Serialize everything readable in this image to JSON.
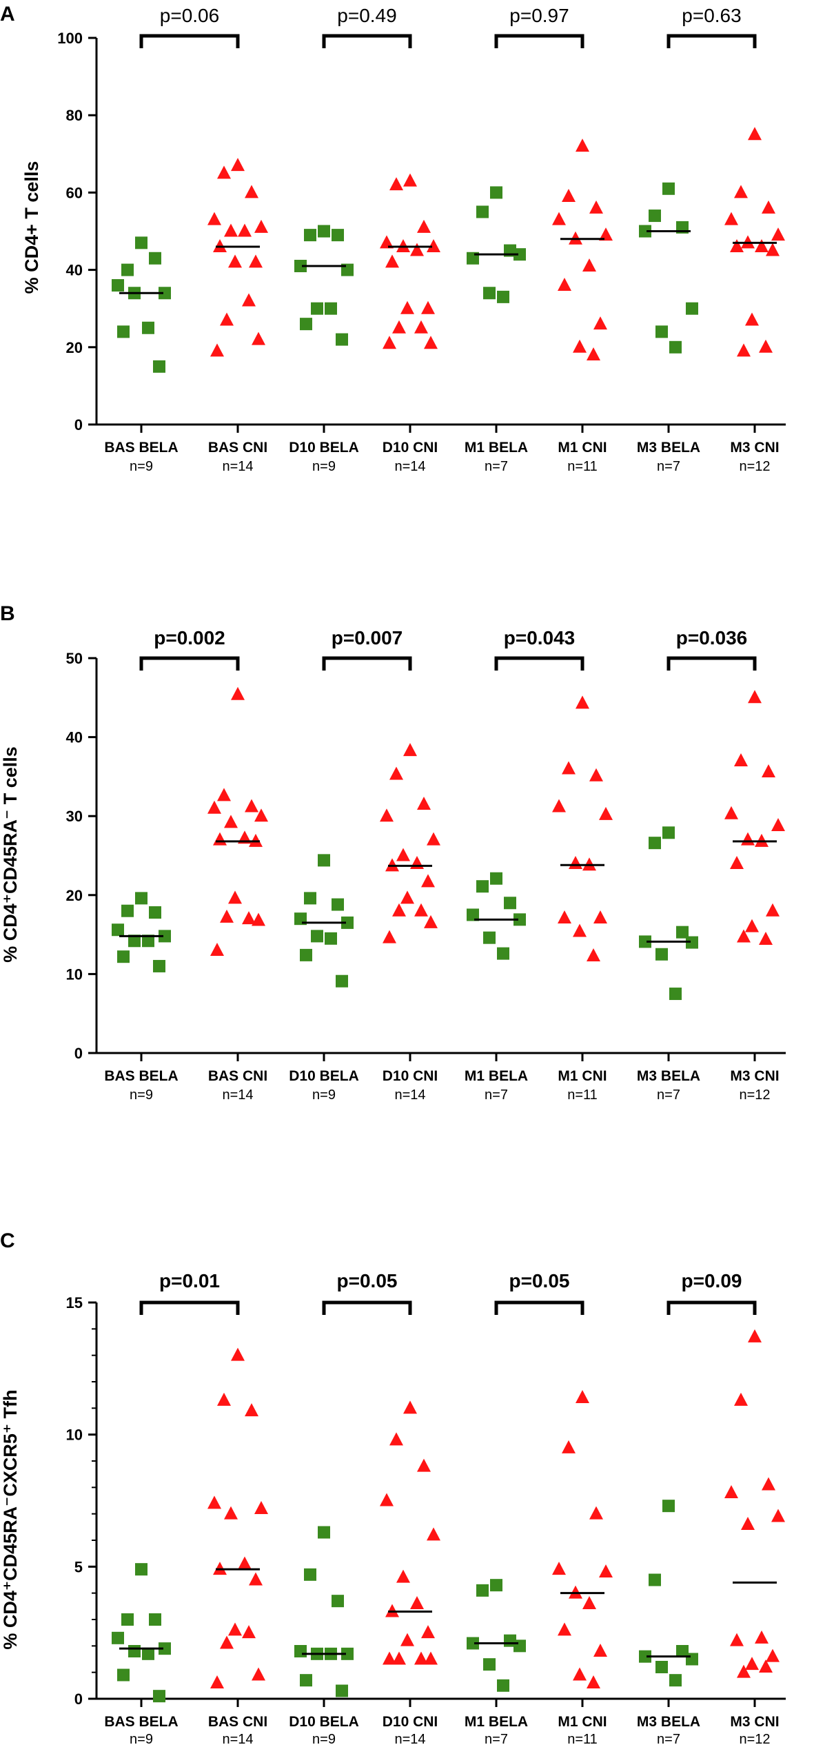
{
  "chart_data": [
    {
      "type": "scatter",
      "panel": "A",
      "ylabel": "% CD4+ T cells",
      "ylabel_html": "",
      "ylim": [
        0,
        100
      ],
      "yticks": [
        0,
        20,
        40,
        60,
        80,
        100
      ],
      "pvalue_bold": false,
      "categories": [
        {
          "label": "BAS BELA",
          "n": "n=9",
          "group": "BELA",
          "median": 34,
          "values": [
            47,
            40,
            43,
            36,
            34,
            34,
            25,
            24,
            15
          ]
        },
        {
          "label": "BAS CNI",
          "n": "n=14",
          "group": "CNI",
          "median": 46,
          "values": [
            67,
            65,
            60,
            53,
            51,
            50,
            50,
            46,
            42,
            42,
            32,
            27,
            22,
            19
          ]
        },
        {
          "label": "D10 BELA",
          "n": "n=9",
          "group": "BELA",
          "median": 41,
          "values": [
            50,
            49,
            49,
            41,
            40,
            30,
            30,
            26,
            22
          ]
        },
        {
          "label": "D10 CNI",
          "n": "n=14",
          "group": "CNI",
          "median": 46,
          "values": [
            63,
            62,
            51,
            47,
            46,
            46,
            45,
            42,
            30,
            30,
            25,
            25,
            21,
            21
          ]
        },
        {
          "label": "M1 BELA",
          "n": "n=7",
          "group": "BELA",
          "median": 44,
          "values": [
            60,
            55,
            45,
            43,
            44,
            34,
            33
          ]
        },
        {
          "label": "M1 CNI",
          "n": "n=11",
          "group": "CNI",
          "median": 48,
          "values": [
            72,
            59,
            56,
            53,
            49,
            48,
            41,
            36,
            26,
            20,
            18
          ]
        },
        {
          "label": "M3 BELA",
          "n": "n=7",
          "group": "BELA",
          "median": 50,
          "values": [
            61,
            54,
            51,
            50,
            30,
            24,
            20
          ]
        },
        {
          "label": "M3 CNI",
          "n": "n=12",
          "group": "CNI",
          "median": 47,
          "values": [
            75,
            60,
            56,
            53,
            49,
            47,
            46,
            46,
            45,
            27,
            20,
            19
          ]
        }
      ],
      "pvalues": [
        {
          "label": "p=0.06",
          "between": [
            0,
            1
          ]
        },
        {
          "label": "p=0.49",
          "between": [
            2,
            3
          ]
        },
        {
          "label": "p=0.97",
          "between": [
            4,
            5
          ]
        },
        {
          "label": "p=0.63",
          "between": [
            6,
            7
          ]
        }
      ]
    },
    {
      "type": "scatter",
      "panel": "B",
      "ylabel": "",
      "ylabel_html": "% CD4⁺CD45RA⁻ T cells",
      "ylim": [
        0,
        50
      ],
      "yticks": [
        0,
        10,
        20,
        30,
        40,
        50
      ],
      "pvalue_bold": true,
      "categories": [
        {
          "label": "BAS BELA",
          "n": "n=9",
          "group": "BELA",
          "median": 14.8,
          "values": [
            19.6,
            18.0,
            17.8,
            15.6,
            14.8,
            14.2,
            14.2,
            12.2,
            11.0
          ]
        },
        {
          "label": "BAS CNI",
          "n": "n=14",
          "group": "CNI",
          "median": 26.8,
          "values": [
            45.4,
            32.6,
            31.2,
            31.0,
            30.0,
            29.2,
            27.2,
            27.0,
            26.8,
            19.6,
            17.0,
            17.2,
            16.8,
            13.0
          ]
        },
        {
          "label": "D10 BELA",
          "n": "n=9",
          "group": "BELA",
          "median": 16.5,
          "values": [
            24.4,
            19.6,
            18.8,
            17.0,
            16.5,
            14.8,
            14.5,
            12.4,
            9.1
          ]
        },
        {
          "label": "D10 CNI",
          "n": "n=14",
          "group": "CNI",
          "median": 23.7,
          "values": [
            38.3,
            35.3,
            31.5,
            30.0,
            27.0,
            25.0,
            24.0,
            23.7,
            21.7,
            19.6,
            18.0,
            18.0,
            16.5,
            14.6
          ]
        },
        {
          "label": "M1 BELA",
          "n": "n=7",
          "group": "BELA",
          "median": 16.9,
          "values": [
            22.1,
            21.1,
            19.0,
            17.5,
            16.9,
            14.6,
            12.6
          ]
        },
        {
          "label": "M1 CNI",
          "n": "n=11",
          "group": "CNI",
          "median": 23.8,
          "values": [
            44.3,
            36.0,
            35.1,
            31.2,
            30.2,
            24.0,
            23.8,
            17.1,
            17.1,
            15.4,
            12.3
          ]
        },
        {
          "label": "M3 BELA",
          "n": "n=7",
          "group": "BELA",
          "median": 14.1,
          "values": [
            27.9,
            26.6,
            15.3,
            14.1,
            14.0,
            12.5,
            7.5
          ]
        },
        {
          "label": "M3 CNI",
          "n": "n=12",
          "group": "CNI",
          "median": 26.8,
          "values": [
            45.0,
            37.0,
            35.6,
            30.3,
            28.8,
            27.0,
            26.8,
            24.0,
            18.0,
            16.0,
            14.4,
            14.7
          ]
        }
      ],
      "pvalues": [
        {
          "label": "p=0.002",
          "between": [
            0,
            1
          ]
        },
        {
          "label": "p=0.007",
          "between": [
            2,
            3
          ]
        },
        {
          "label": "p=0.043",
          "between": [
            4,
            5
          ]
        },
        {
          "label": "p=0.036",
          "between": [
            6,
            7
          ]
        }
      ]
    },
    {
      "type": "scatter",
      "panel": "C",
      "ylabel": "",
      "ylabel_html": "% CD4⁺CD45RA⁻CXCR5⁺ Tfh",
      "ylim": [
        0,
        15
      ],
      "yticks": [
        0,
        5,
        10,
        15
      ],
      "pvalue_bold": true,
      "categories": [
        {
          "label": "BAS BELA",
          "n": "n=9",
          "group": "BELA",
          "median": 1.9,
          "values": [
            4.9,
            3.0,
            3.0,
            2.3,
            1.9,
            1.8,
            1.7,
            0.9,
            0.1
          ]
        },
        {
          "label": "BAS CNI",
          "n": "n=14",
          "group": "CNI",
          "median": 4.9,
          "values": [
            13.0,
            11.3,
            10.9,
            7.4,
            7.2,
            7.0,
            5.1,
            4.9,
            4.5,
            2.6,
            2.5,
            2.1,
            0.9,
            0.6
          ]
        },
        {
          "label": "D10 BELA",
          "n": "n=9",
          "group": "BELA",
          "median": 1.7,
          "values": [
            6.3,
            4.7,
            3.7,
            1.8,
            1.7,
            1.7,
            1.7,
            0.7,
            0.3
          ]
        },
        {
          "label": "D10 CNI",
          "n": "n=14",
          "group": "CNI",
          "median": 3.3,
          "values": [
            11.0,
            9.8,
            8.8,
            7.5,
            6.2,
            4.6,
            3.6,
            3.3,
            2.5,
            2.2,
            1.5,
            1.5,
            1.5,
            1.5
          ]
        },
        {
          "label": "M1 BELA",
          "n": "n=7",
          "group": "BELA",
          "median": 2.1,
          "values": [
            4.3,
            4.1,
            2.2,
            2.1,
            2.0,
            1.3,
            0.5
          ]
        },
        {
          "label": "M1 CNI",
          "n": "n=11",
          "group": "CNI",
          "median": 4.0,
          "values": [
            11.4,
            9.5,
            7.0,
            4.9,
            4.8,
            4.0,
            3.6,
            2.6,
            1.8,
            0.9,
            0.6
          ]
        },
        {
          "label": "M3 BELA",
          "n": "n=7",
          "group": "BELA",
          "median": 1.6,
          "values": [
            7.3,
            4.5,
            1.8,
            1.6,
            1.5,
            1.2,
            0.7
          ]
        },
        {
          "label": "M3 CNI",
          "n": "n=12",
          "group": "CNI",
          "median": 4.4,
          "values": [
            13.7,
            11.3,
            8.1,
            7.8,
            6.9,
            6.6,
            2.3,
            2.2,
            1.6,
            1.3,
            1.2,
            1.0
          ]
        }
      ],
      "pvalues": [
        {
          "label": "p=0.01",
          "between": [
            0,
            1
          ]
        },
        {
          "label": "p=0.05",
          "between": [
            2,
            3
          ]
        },
        {
          "label": "p=0.05",
          "between": [
            4,
            5
          ]
        },
        {
          "label": "p=0.09",
          "between": [
            6,
            7
          ]
        }
      ]
    }
  ],
  "colors": {
    "BELA": "#3a8a1e",
    "CNI": "#ff1414",
    "axis": "#000000"
  },
  "markers": {
    "BELA": "square-icon",
    "CNI": "triangle-icon"
  }
}
